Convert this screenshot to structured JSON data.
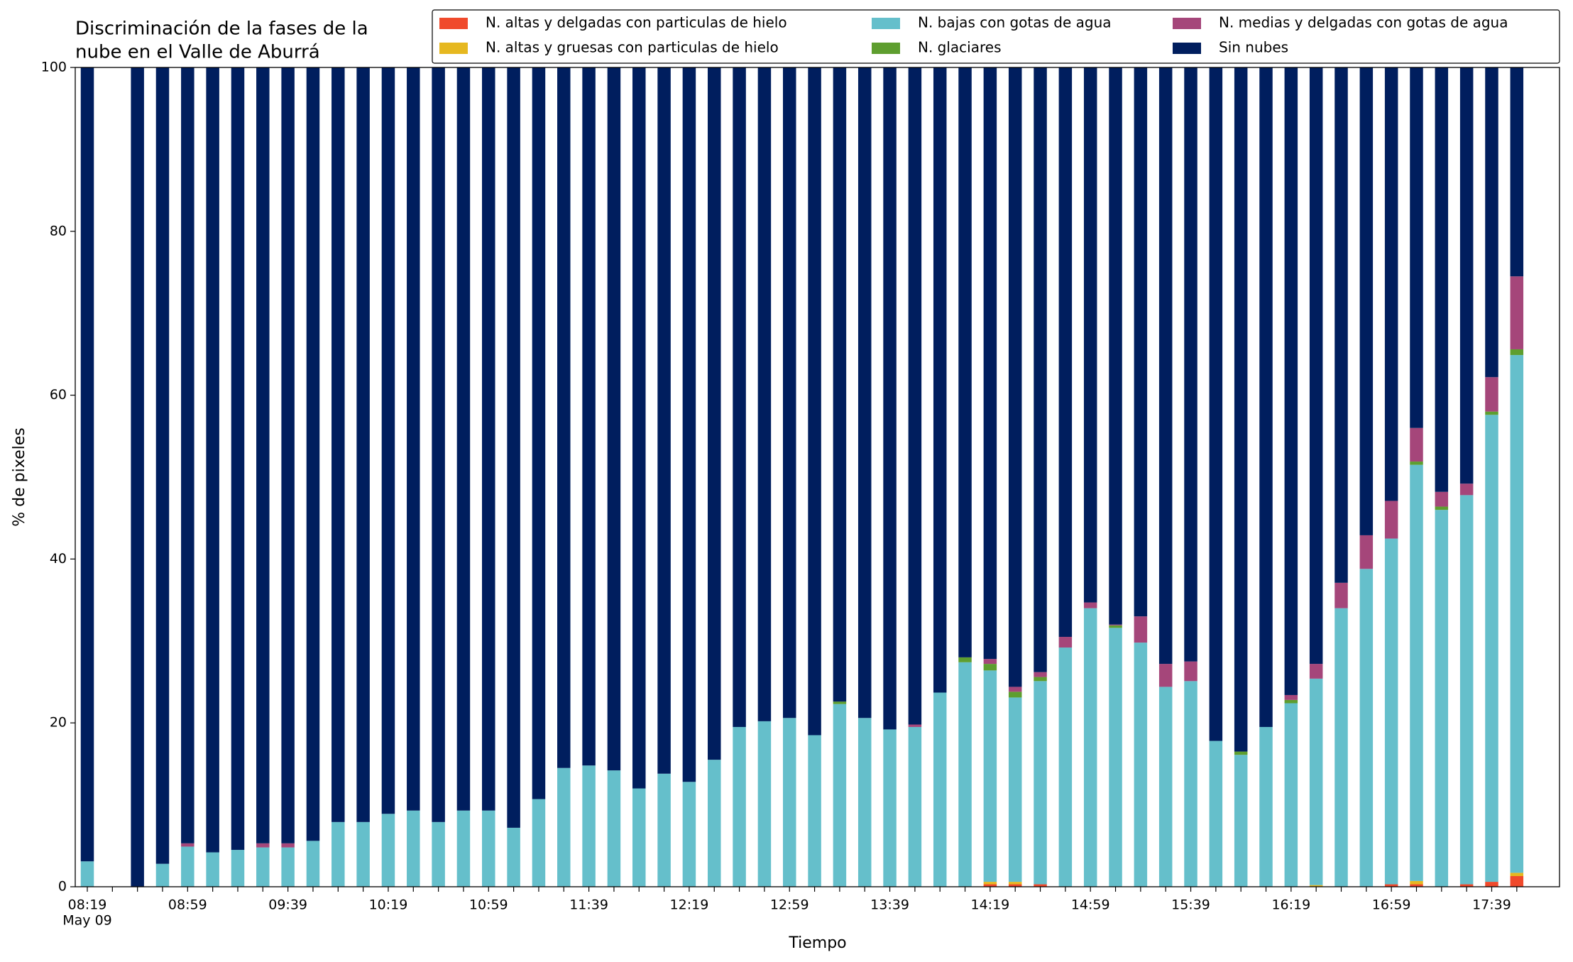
{
  "chart_data": {
    "type": "stacked_bar",
    "title": [
      "Discriminación de la fases de la",
      "nube en el Valle de Aburrá"
    ],
    "xlabel": "Tiempo",
    "ylabel": "% de pixeles",
    "x_date": "May 09",
    "categories": [
      "08:19",
      null,
      null,
      null,
      "08:59",
      null,
      null,
      null,
      "09:39",
      null,
      null,
      null,
      "10:19",
      null,
      null,
      null,
      "10:59",
      null,
      null,
      null,
      "11:39",
      null,
      null,
      null,
      "12:19",
      null,
      null,
      null,
      "12:59",
      null,
      null,
      null,
      "13:39",
      null,
      null,
      null,
      "14:19",
      null,
      null,
      null,
      "14:59",
      null,
      null,
      null,
      "15:39",
      null,
      null,
      null,
      "16:19",
      null,
      null,
      null,
      "16:59",
      null,
      null,
      null,
      "17:39",
      null
    ],
    "ylim": [
      0,
      100
    ],
    "yticks": [
      0,
      20,
      40,
      60,
      80,
      100
    ],
    "legend": "top",
    "series": [
      {
        "name": "N. altas y delgadas con particulas de hielo",
        "color": "#f04a2c",
        "values": [
          0,
          null,
          0,
          0,
          0,
          0,
          0,
          0,
          0,
          0,
          0,
          0,
          0,
          0,
          0,
          0,
          0,
          0,
          0,
          0,
          0,
          0,
          0,
          0,
          0,
          0,
          0,
          0,
          0,
          0,
          0,
          0,
          0,
          0,
          0,
          0,
          0.3,
          0.3,
          0.3,
          0,
          0,
          0,
          0,
          0,
          0,
          0,
          0,
          0,
          0,
          0,
          0,
          0,
          0.3,
          0.3,
          0,
          0.3,
          0.6,
          1.3
        ]
      },
      {
        "name": "N. altas y gruesas con particulas de hielo",
        "color": "#e6b820",
        "values": [
          0,
          null,
          0,
          0,
          0,
          0,
          0,
          0,
          0,
          0,
          0,
          0,
          0,
          0,
          0,
          0,
          0,
          0,
          0,
          0,
          0,
          0,
          0,
          0,
          0,
          0,
          0,
          0,
          0,
          0,
          0,
          0,
          0,
          0,
          0,
          0,
          0.3,
          0.3,
          0,
          0,
          0,
          0,
          0,
          0,
          0,
          0,
          0,
          0,
          0,
          0.2,
          0,
          0,
          0,
          0.4,
          0,
          0,
          0,
          0.4
        ]
      },
      {
        "name": "N. bajas con gotas de agua",
        "color": "#65bfcb",
        "values": [
          3.1,
          null,
          0,
          2.8,
          4.9,
          4.2,
          4.5,
          4.8,
          4.8,
          5.6,
          7.9,
          7.9,
          8.9,
          9.3,
          7.9,
          9.3,
          9.3,
          7.2,
          10.7,
          14.5,
          14.8,
          14.2,
          12.0,
          13.8,
          12.8,
          15.5,
          19.5,
          20.2,
          20.6,
          18.5,
          22.3,
          20.6,
          19.2,
          19.5,
          23.7,
          27.4,
          25.8,
          22.5,
          24.8,
          29.2,
          34.0,
          31.6,
          29.8,
          24.4,
          25.1,
          17.8,
          16.1,
          19.5,
          22.4,
          25.2,
          34.0,
          38.8,
          42.2,
          50.8,
          46.0,
          47.5,
          57.0,
          63.2
        ]
      },
      {
        "name": "N. glaciares",
        "color": "#5e9e2f",
        "values": [
          0,
          null,
          0,
          0,
          0,
          0,
          0,
          0,
          0,
          0,
          0,
          0,
          0,
          0,
          0,
          0,
          0,
          0,
          0,
          0,
          0,
          0,
          0,
          0,
          0,
          0,
          0,
          0,
          0,
          0,
          0.3,
          0,
          0,
          0,
          0,
          0.6,
          0.8,
          0.7,
          0.5,
          0,
          0,
          0.3,
          0,
          0,
          0,
          0,
          0.4,
          0,
          0.4,
          0,
          0,
          0,
          0,
          0.4,
          0.4,
          0,
          0.4,
          0.7
        ]
      },
      {
        "name": "N. medias y delgadas con gotas de agua",
        "color": "#a5467a",
        "values": [
          0,
          null,
          0,
          0,
          0.4,
          0,
          0,
          0.5,
          0.5,
          0,
          0,
          0,
          0,
          0,
          0,
          0,
          0,
          0,
          0,
          0,
          0,
          0,
          0,
          0,
          0,
          0,
          0,
          0,
          0,
          0,
          0,
          0,
          0,
          0.3,
          0,
          0,
          0.6,
          0.6,
          0.6,
          1.3,
          0.7,
          0.1,
          3.2,
          2.8,
          2.4,
          0,
          0,
          0,
          0.6,
          1.8,
          3.1,
          4.1,
          4.6,
          4.1,
          1.8,
          1.4,
          4.2,
          8.9
        ]
      },
      {
        "name": "Sin nubes",
        "color": "#001e5e",
        "values": [
          96.9,
          null,
          100,
          97.2,
          94.7,
          95.8,
          95.5,
          94.7,
          94.7,
          94.4,
          92.1,
          92.1,
          91.1,
          90.7,
          92.1,
          90.7,
          90.7,
          92.8,
          89.3,
          85.5,
          85.2,
          85.8,
          88.0,
          86.2,
          87.2,
          84.5,
          80.5,
          79.8,
          79.4,
          81.5,
          77.4,
          79.4,
          80.8,
          80.2,
          76.3,
          72.0,
          72.2,
          75.6,
          73.8,
          69.5,
          65.3,
          68.0,
          67.0,
          72.8,
          72.5,
          82.2,
          83.5,
          80.5,
          76.6,
          72.8,
          62.9,
          57.1,
          52.9,
          44.0,
          51.8,
          50.8,
          37.8,
          25.5
        ]
      }
    ]
  }
}
